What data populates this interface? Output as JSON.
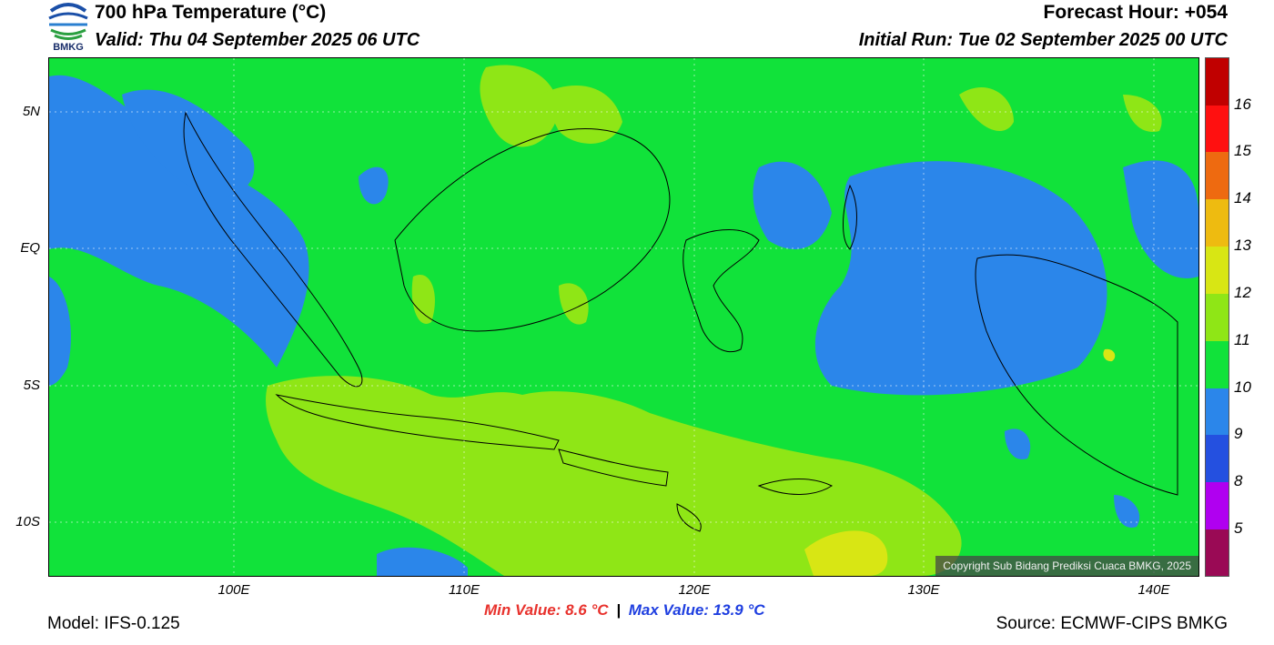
{
  "header": {
    "logo_text": "BMKG",
    "title": "700 hPa Temperature (°C)",
    "valid": "Valid: Thu 04 September 2025 06 UTC",
    "forecast_hour": "Forecast Hour: +054",
    "initial_run": "Initial Run: Tue 02 September 2025 00 UTC"
  },
  "map": {
    "lat_labels": [
      "5N",
      "EQ",
      "5S",
      "10S"
    ],
    "lon_labels": [
      "100E",
      "110E",
      "120E",
      "130E",
      "140E"
    ],
    "copyright": "Copyright Sub Bidang Prediksi Cuaca BMKG, 2025"
  },
  "colorbar": {
    "labels": [
      "16",
      "15",
      "14",
      "13",
      "12",
      "11",
      "10",
      "9",
      "8",
      "5"
    ],
    "colors": [
      "#c00000",
      "#ff1010",
      "#ee6a10",
      "#eebb10",
      "#d8e614",
      "#8fe616",
      "#11e23a",
      "#2b86ea",
      "#2450e0",
      "#b000f0",
      "#9a0a55"
    ]
  },
  "footer": {
    "model": "Model: IFS-0.125",
    "min_value": "Min Value: 8.6 °C",
    "separator": "|",
    "max_value": "Max Value: 13.9 °C",
    "source": "Source: ECMWF-CIPS BMKG"
  }
}
